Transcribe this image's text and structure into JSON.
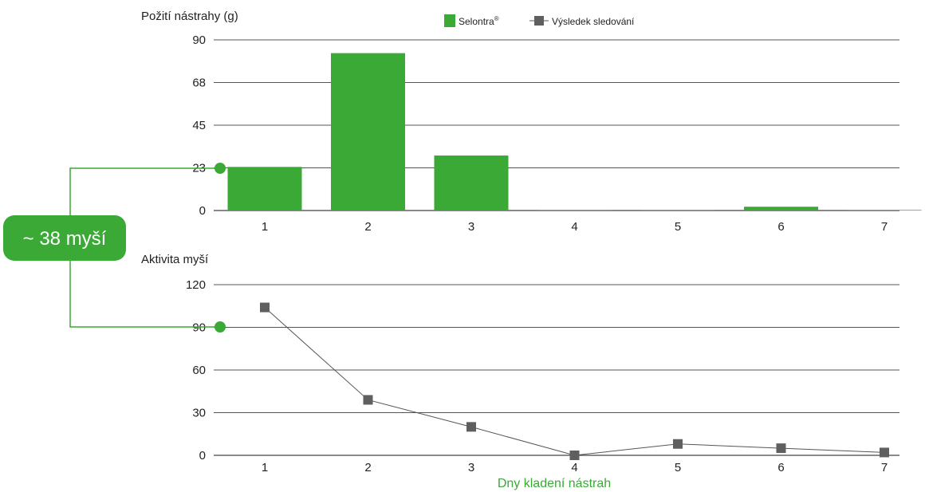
{
  "colors": {
    "green": "#3aa935",
    "marker": "#5f5f5f",
    "line": "#555555"
  },
  "legend": {
    "series1": "Selontra",
    "series1_sup": "®",
    "series2": "Výsledek sledování"
  },
  "badge": {
    "label": "~ 38 myší"
  },
  "x_title": "Dny kladení nástrah",
  "chart_data": [
    {
      "type": "bar",
      "ylabel": "Požití nástrahy (g)",
      "categories": [
        "1",
        "2",
        "3",
        "4",
        "5",
        "6",
        "7"
      ],
      "values": [
        23,
        83,
        29,
        0.3,
        0.3,
        2,
        0.3
      ],
      "ylim": [
        0,
        90
      ],
      "yticks": [
        "0",
        "23",
        "45",
        "68",
        "90"
      ],
      "ytick_values": [
        0,
        22.5,
        45,
        67.5,
        90
      ],
      "grid": true
    },
    {
      "type": "line",
      "ylabel": "Aktivita myší",
      "categories": [
        "1",
        "2",
        "3",
        "4",
        "5",
        "6",
        "7"
      ],
      "values": [
        104,
        39,
        20,
        0,
        8,
        5,
        2
      ],
      "ylim": [
        0,
        120
      ],
      "yticks": [
        "0",
        "30",
        "60",
        "90",
        "120"
      ],
      "ytick_values": [
        0,
        30,
        60,
        90,
        120
      ],
      "grid": true
    }
  ]
}
